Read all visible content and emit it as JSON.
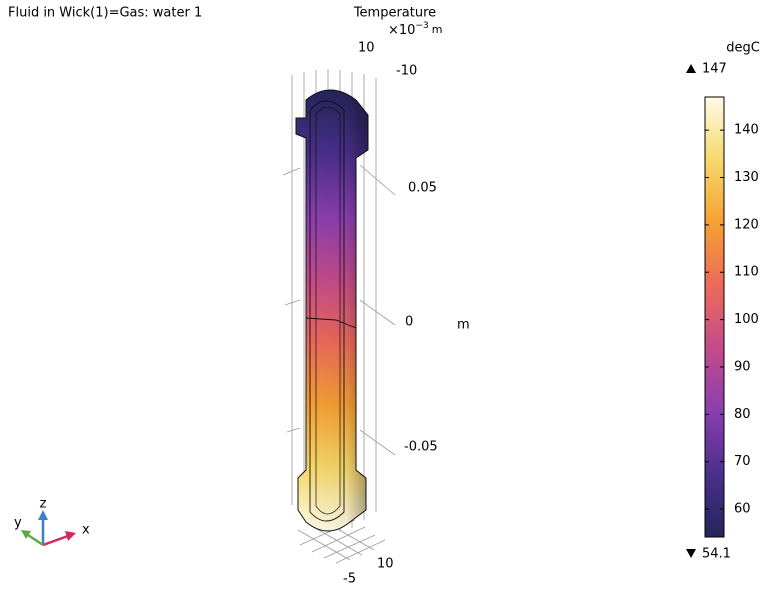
{
  "chart_data": {
    "type": "surface",
    "title": "Fluid in Wick(1)=Gas: water 1",
    "subtitle": "Temperature",
    "axis_scale": {
      "multiplier": "×10",
      "exponent": "−3",
      "unit": "m"
    },
    "top_ticks": [
      10,
      -10
    ],
    "z_ticks": [
      0.05,
      0,
      -0.05
    ],
    "z_unit": "m",
    "bottom_ticks": [
      10,
      -5
    ],
    "triad": [
      "x",
      "y",
      "z"
    ],
    "colorbar": {
      "unit": "degC",
      "clim": [
        54.1,
        147
      ],
      "ticks": [
        60,
        70,
        80,
        90,
        100,
        110,
        120,
        130,
        140
      ],
      "colormap": [
        "#23265a",
        "#4a2f8c",
        "#8a3fb0",
        "#c44b8c",
        "#ec6a5a",
        "#f5a033",
        "#f6d86a",
        "#fffbe8"
      ]
    }
  }
}
